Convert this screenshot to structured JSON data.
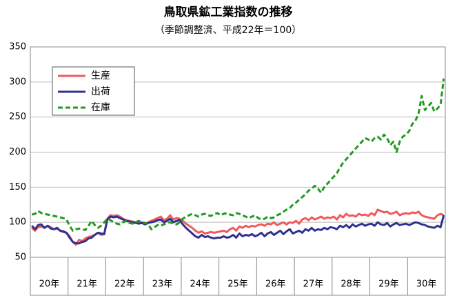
{
  "chart_data": {
    "type": "line",
    "title": "鳥取県鉱工業指数の推移",
    "subtitle": "（季節調整済、平成22年＝100）",
    "xgroups": [
      "20年",
      "21年",
      "22年",
      "23年",
      "24年",
      "25年",
      "26年",
      "27年",
      "28年",
      "29年",
      "30年"
    ],
    "ylim": [
      50,
      350
    ],
    "yticks": [
      50,
      100,
      150,
      200,
      250,
      300,
      350
    ],
    "grid": true,
    "legend": "upper left",
    "series": [
      {
        "name": "生産",
        "color": "#f05a5a",
        "dash": false,
        "values": [
          92,
          88,
          93,
          94,
          92,
          95,
          93,
          90,
          91,
          88,
          86,
          85,
          80,
          72,
          68,
          75,
          73,
          77,
          79,
          80,
          82,
          85,
          82,
          83,
          105,
          110,
          109,
          110,
          108,
          105,
          103,
          102,
          101,
          100,
          99,
          100,
          98,
          100,
          102,
          104,
          106,
          108,
          103,
          105,
          110,
          104,
          106,
          105,
          102,
          98,
          95,
          92,
          88,
          85,
          87,
          84,
          85,
          86,
          85,
          86,
          87,
          88,
          86,
          90,
          92,
          88,
          94,
          92,
          95,
          93,
          95,
          94,
          96,
          97,
          95,
          98,
          97,
          100,
          96,
          98,
          100,
          97,
          100,
          99,
          102,
          98,
          104,
          106,
          103,
          107,
          104,
          106,
          108,
          105,
          107,
          106,
          108,
          104,
          110,
          107,
          112,
          109,
          110,
          108,
          112,
          110,
          111,
          109,
          113,
          110,
          118,
          116,
          114,
          115,
          112,
          113,
          115,
          110,
          112,
          113,
          112,
          114,
          113,
          115,
          110,
          108,
          107,
          106,
          105,
          110,
          112,
          110
        ]
      },
      {
        "name": "出荷",
        "color": "#2e3192",
        "dash": false,
        "values": [
          95,
          90,
          96,
          97,
          92,
          95,
          91,
          90,
          92,
          88,
          87,
          85,
          78,
          72,
          70,
          70,
          72,
          73,
          77,
          78,
          82,
          85,
          84,
          83,
          104,
          108,
          107,
          108,
          106,
          104,
          102,
          101,
          100,
          99,
          98,
          99,
          97,
          99,
          100,
          101,
          103,
          104,
          100,
          102,
          105,
          100,
          102,
          103,
          97,
          92,
          88,
          84,
          80,
          78,
          82,
          79,
          80,
          78,
          77,
          78,
          78,
          80,
          78,
          79,
          82,
          78,
          84,
          80,
          82,
          81,
          83,
          80,
          82,
          85,
          80,
          84,
          86,
          82,
          85,
          88,
          83,
          87,
          90,
          84,
          86,
          88,
          85,
          90,
          88,
          92,
          88,
          90,
          89,
          92,
          90,
          93,
          92,
          90,
          95,
          93,
          96,
          92,
          97,
          94,
          96,
          98,
          95,
          97,
          98,
          95,
          100,
          97,
          96,
          99,
          94,
          97,
          99,
          96,
          97,
          98,
          96,
          98,
          100,
          99,
          97,
          96,
          94,
          93,
          92,
          95,
          93,
          110
        ]
      },
      {
        "name": "在庫",
        "color": "#1f9a1f",
        "dash": true,
        "values": [
          111,
          112,
          116,
          113,
          112,
          111,
          110,
          109,
          108,
          107,
          106,
          104,
          95,
          88,
          90,
          91,
          90,
          89,
          95,
          102,
          96,
          92,
          95,
          100,
          105,
          103,
          100,
          98,
          97,
          100,
          102,
          99,
          98,
          100,
          102,
          100,
          99,
          97,
          90,
          93,
          96,
          95,
          97,
          99,
          100,
          98,
          97,
          100,
          105,
          108,
          110,
          112,
          110,
          108,
          111,
          112,
          110,
          109,
          112,
          113,
          110,
          112,
          113,
          111,
          110,
          113,
          112,
          110,
          108,
          106,
          108,
          110,
          106,
          104,
          105,
          108,
          106,
          107,
          110,
          112,
          115,
          118,
          120,
          125,
          128,
          132,
          136,
          140,
          145,
          148,
          152,
          148,
          142,
          150,
          155,
          160,
          165,
          170,
          178,
          185,
          190,
          195,
          200,
          205,
          210,
          215,
          220,
          218,
          215,
          220,
          222,
          218,
          225,
          220,
          210,
          215,
          200,
          215,
          222,
          225,
          230,
          240,
          245,
          255,
          280,
          260,
          265,
          270,
          258,
          262,
          268,
          305
        ]
      }
    ]
  }
}
